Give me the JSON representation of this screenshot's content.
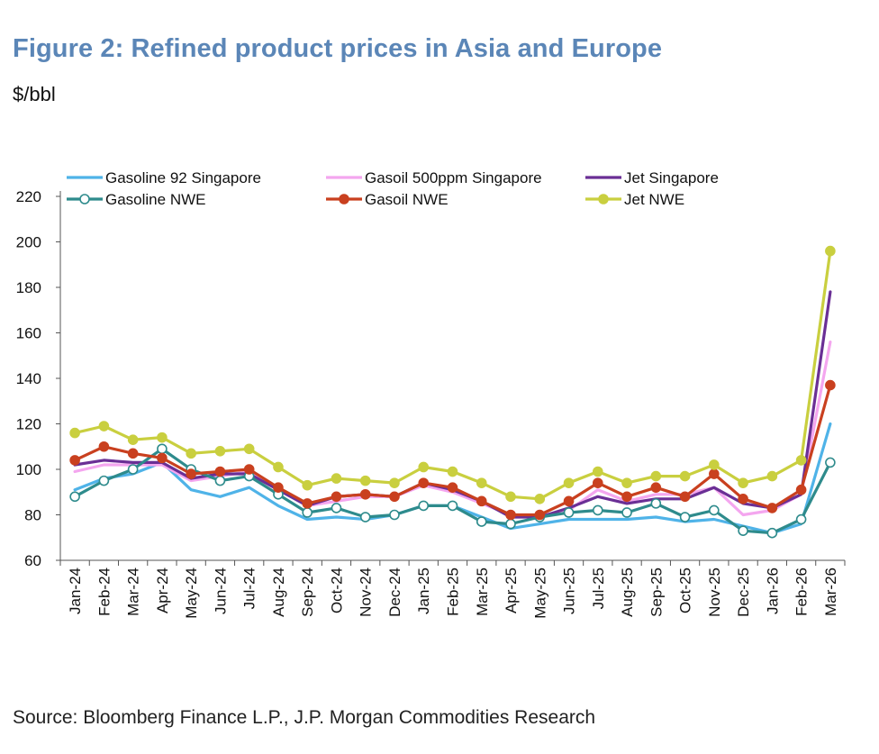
{
  "header": {
    "title": "Figure 2: Refined product prices in Asia and Europe",
    "unit": "$/bbl"
  },
  "footer": {
    "source": "Source: Bloomberg Finance L.P., J.P. Morgan Commodities Research"
  },
  "colors": {
    "title": "#5b86b7",
    "axis": "#555555"
  },
  "chart_data": {
    "type": "line",
    "title": "Figure 2: Refined product prices in Asia and Europe",
    "ylabel": "$/bbl",
    "xlabel": "",
    "ylim": [
      60,
      220
    ],
    "yticks": [
      60,
      80,
      100,
      120,
      140,
      160,
      180,
      200,
      220
    ],
    "grid": false,
    "legend_position": "top",
    "categories": [
      "Jan-24",
      "Feb-24",
      "Mar-24",
      "Apr-24",
      "May-24",
      "Jun-24",
      "Jul-24",
      "Aug-24",
      "Sep-24",
      "Oct-24",
      "Nov-24",
      "Dec-24",
      "Jan-25",
      "Feb-25",
      "Mar-25",
      "Apr-25",
      "May-25",
      "Jun-25",
      "Jul-25",
      "Aug-25",
      "Sep-25",
      "Oct-25",
      "Nov-25",
      "Dec-25",
      "Jan-26",
      "Feb-26",
      "Mar-26"
    ],
    "series": [
      {
        "name": "Gasoline 92 Singapore",
        "color": "#4fb3e8",
        "marker": "none",
        "legend_col": 0,
        "legend_row": 0,
        "values": [
          91,
          96,
          98,
          103,
          91,
          88,
          92,
          84,
          78,
          79,
          78,
          80,
          84,
          84,
          79,
          74,
          76,
          78,
          78,
          78,
          79,
          77,
          78,
          75,
          72,
          76,
          120
        ]
      },
      {
        "name": "Gasoil 500ppm Singapore",
        "color": "#f4a6ef",
        "marker": "none",
        "legend_col": 1,
        "legend_row": 0,
        "values": [
          99,
          102,
          102,
          102,
          95,
          97,
          99,
          91,
          84,
          86,
          88,
          88,
          93,
          90,
          85,
          80,
          79,
          82,
          91,
          86,
          89,
          89,
          92,
          80,
          82,
          89,
          156
        ]
      },
      {
        "name": "Jet Singapore",
        "color": "#6a2f95",
        "marker": "none",
        "legend_col": 2,
        "legend_row": 0,
        "values": [
          102,
          104,
          103,
          103,
          96,
          98,
          98,
          91,
          84,
          88,
          89,
          88,
          94,
          91,
          86,
          79,
          79,
          83,
          88,
          85,
          87,
          87,
          92,
          85,
          83,
          89,
          178
        ]
      },
      {
        "name": "Gasoline NWE",
        "color": "#2e8b8c",
        "marker": "open",
        "legend_col": 0,
        "legend_row": 1,
        "values": [
          88,
          95,
          100,
          109,
          100,
          95,
          97,
          89,
          81,
          83,
          79,
          80,
          84,
          84,
          77,
          76,
          79,
          81,
          82,
          81,
          85,
          79,
          82,
          73,
          72,
          78,
          103
        ]
      },
      {
        "name": "Gasoil NWE",
        "color": "#c9401f",
        "marker": "filled",
        "legend_col": 1,
        "legend_row": 1,
        "values": [
          104,
          110,
          107,
          105,
          98,
          99,
          100,
          92,
          85,
          88,
          89,
          88,
          94,
          92,
          86,
          80,
          80,
          86,
          94,
          88,
          92,
          88,
          98,
          87,
          83,
          91,
          137
        ]
      },
      {
        "name": "Jet NWE",
        "color": "#c9cf3f",
        "marker": "filled",
        "legend_col": 2,
        "legend_row": 1,
        "values": [
          116,
          119,
          113,
          114,
          107,
          108,
          109,
          101,
          93,
          96,
          95,
          94,
          101,
          99,
          94,
          88,
          87,
          94,
          99,
          94,
          97,
          97,
          102,
          94,
          97,
          104,
          196
        ]
      }
    ]
  }
}
